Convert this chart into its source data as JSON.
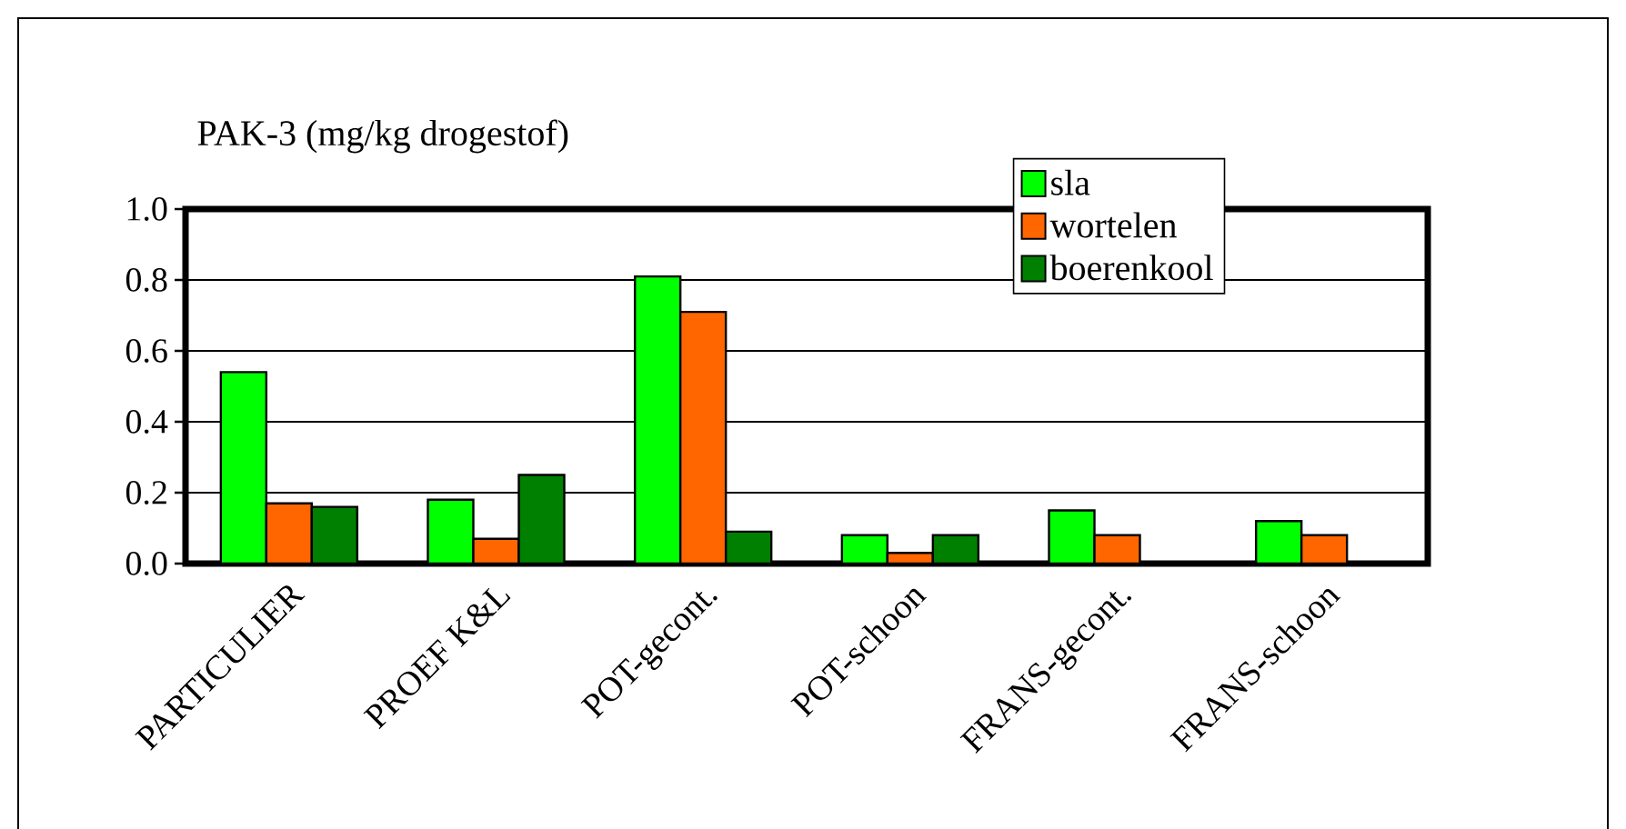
{
  "chart_data": {
    "type": "bar",
    "title": "PAK-3 (mg/kg drogestof)",
    "categories": [
      "PARTICULIER",
      "PROEF K&L",
      "POT-gecont.",
      "POT-schoon",
      "FRANS-gecont.",
      "FRANS-schoon"
    ],
    "series": [
      {
        "name": "sla",
        "color": "#00ff00",
        "values": [
          0.54,
          0.18,
          0.81,
          0.08,
          0.15,
          0.12
        ]
      },
      {
        "name": "wortelen",
        "color": "#ff6600",
        "values": [
          0.17,
          0.07,
          0.71,
          0.03,
          0.08,
          0.08
        ]
      },
      {
        "name": "boerenkool",
        "color": "#008000",
        "values": [
          0.16,
          0.25,
          0.09,
          0.08,
          null,
          null
        ]
      }
    ],
    "ylim": [
      0,
      1.0
    ],
    "yticks": [
      {
        "value": 0,
        "label": "0.0"
      },
      {
        "value": 0.2,
        "label": "0.2"
      },
      {
        "value": 0.4,
        "label": "0.4"
      },
      {
        "value": 0.6,
        "label": "0.6"
      },
      {
        "value": 0.8,
        "label": "0.8"
      },
      {
        "value": 1.0,
        "label": "1.0"
      }
    ],
    "grid": "y",
    "legend": "top right"
  }
}
